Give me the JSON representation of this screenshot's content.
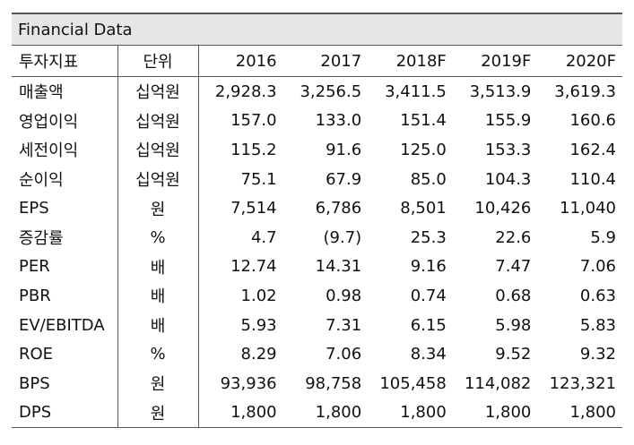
{
  "title": "Financial Data",
  "header": {
    "name": "투자지표",
    "unit": "단위",
    "years": [
      "2016",
      "2017",
      "2018F",
      "2019F",
      "2020F"
    ]
  },
  "rows": [
    {
      "name": "매출액",
      "unit": "십억원",
      "values": [
        "2,928.3",
        "3,256.5",
        "3,411.5",
        "3,513.9",
        "3,619.3"
      ]
    },
    {
      "name": "영업이익",
      "unit": "십억원",
      "values": [
        "157.0",
        "133.0",
        "151.4",
        "155.9",
        "160.6"
      ]
    },
    {
      "name": "세전이익",
      "unit": "십억원",
      "values": [
        "115.2",
        "91.6",
        "125.0",
        "153.3",
        "162.4"
      ]
    },
    {
      "name": "순이익",
      "unit": "십억원",
      "values": [
        "75.1",
        "67.9",
        "85.0",
        "104.3",
        "110.4"
      ]
    },
    {
      "name": "EPS",
      "unit": "원",
      "values": [
        "7,514",
        "6,786",
        "8,501",
        "10,426",
        "11,040"
      ]
    },
    {
      "name": "증감률",
      "unit": "%",
      "values": [
        "4.7",
        "(9.7)",
        "25.3",
        "22.6",
        "5.9"
      ]
    },
    {
      "name": "PER",
      "unit": "배",
      "values": [
        "12.74",
        "14.31",
        "9.16",
        "7.47",
        "7.06"
      ]
    },
    {
      "name": "PBR",
      "unit": "배",
      "values": [
        "1.02",
        "0.98",
        "0.74",
        "0.68",
        "0.63"
      ]
    },
    {
      "name": "EV/EBITDA",
      "unit": "배",
      "values": [
        "5.93",
        "7.31",
        "6.15",
        "5.98",
        "5.83"
      ]
    },
    {
      "name": "ROE",
      "unit": "%",
      "values": [
        "8.29",
        "7.06",
        "8.34",
        "9.52",
        "9.32"
      ]
    },
    {
      "name": "BPS",
      "unit": "원",
      "values": [
        "93,936",
        "98,758",
        "105,458",
        "114,082",
        "123,321"
      ]
    },
    {
      "name": "DPS",
      "unit": "원",
      "values": [
        "1,800",
        "1,800",
        "1,800",
        "1,800",
        "1,800"
      ]
    }
  ]
}
